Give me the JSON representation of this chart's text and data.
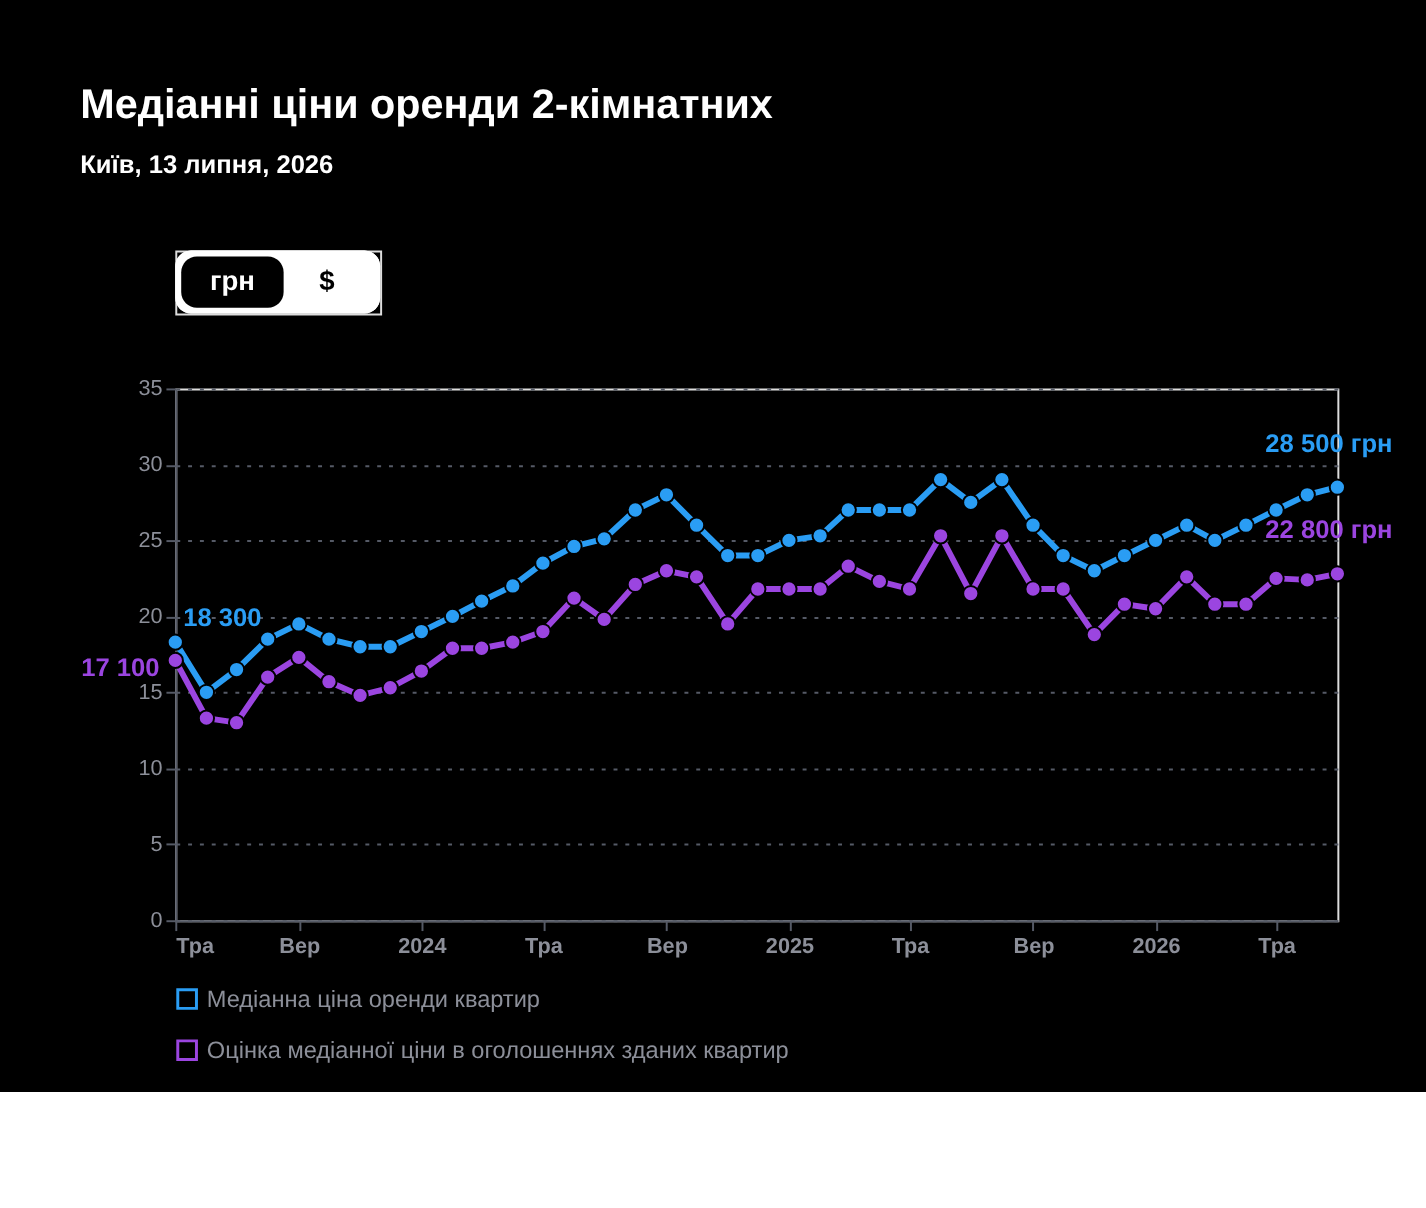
{
  "chart_data": {
    "type": "line",
    "title": "Медіанні ціни оренди 2-кімнатних",
    "subtitle": "Київ, 13 липня, 2026",
    "annotations": [
      "грн",
      "$",
      {
        "text": "18 300",
        "x": "2023-05",
        "y": 18.3
      },
      {
        "text": "17 100",
        "x": "2023-05",
        "y": 17.1
      },
      {
        "text": "28 500 грн",
        "x": "2026-07",
        "y": 28.5
      },
      {
        "text": "22 800 грн",
        "x": "2026-07",
        "y": 22.8
      }
    ],
    "x": [
      "2023-05",
      "2023-06",
      "2023-07",
      "2023-08",
      "2023-09",
      "2023-10",
      "2023-11",
      "2023-12",
      "2024-01",
      "2024-02",
      "2024-03",
      "2024-04",
      "2024-05",
      "2024-06",
      "2024-07",
      "2024-08",
      "2024-09",
      "2024-10",
      "2024-11",
      "2024-12",
      "2025-01",
      "2025-02",
      "2025-03",
      "2025-04",
      "2025-05",
      "2025-06",
      "2025-07",
      "2025-08",
      "2025-09",
      "2025-10",
      "2025-11",
      "2025-12",
      "2026-01",
      "2026-02",
      "2026-03",
      "2026-04",
      "2026-05",
      "2026-06",
      "2026-07"
    ],
    "series": [
      {
        "name": "Медіанна ціна оренди квартир",
        "color": "#2a9df4",
        "values": [
          18.3,
          15.0,
          16.5,
          18.5,
          19.5,
          18.5,
          18.0,
          18.0,
          19.0,
          20.0,
          21.0,
          22.0,
          23.5,
          24.6,
          25.1,
          27.0,
          28.0,
          26.0,
          24.0,
          24.0,
          25.0,
          25.3,
          27.0,
          27.0,
          27.0,
          29.0,
          27.5,
          29.0,
          26.0,
          24.0,
          23.0,
          24.0,
          25.0,
          26.0,
          25.0,
          26.0,
          27.0,
          28.0,
          28.5
        ]
      },
      {
        "name": "Оцінка медіанної ціни в оголошеннях зданих квартир",
        "color": "#9b45e0",
        "values": [
          17.1,
          13.3,
          13.0,
          16.0,
          17.3,
          15.7,
          14.8,
          15.3,
          16.4,
          17.9,
          17.9,
          18.3,
          19.0,
          21.2,
          19.8,
          22.1,
          23.0,
          22.6,
          19.5,
          21.8,
          21.8,
          21.8,
          23.3,
          22.3,
          21.8,
          25.3,
          21.5,
          25.3,
          21.8,
          21.8,
          18.8,
          20.8,
          20.5,
          22.6,
          20.8,
          20.8,
          22.5,
          22.4,
          22.8
        ]
      }
    ],
    "xlim": [
      "2023-05",
      "2026-07"
    ],
    "xticks": [
      {
        "value": "2023-05",
        "label": "Тра"
      },
      {
        "value": "2023-09",
        "label": "Вер"
      },
      {
        "value": "2024-01",
        "label": "2024"
      },
      {
        "value": "2024-05",
        "label": "Тра"
      },
      {
        "value": "2024-09",
        "label": "Вер"
      },
      {
        "value": "2025-01",
        "label": "2025"
      },
      {
        "value": "2025-05",
        "label": "Тра"
      },
      {
        "value": "2025-09",
        "label": "Вер"
      },
      {
        "value": "2026-01",
        "label": "2026"
      },
      {
        "value": "2026-05",
        "label": "Тра"
      }
    ],
    "ylim": [
      0,
      35
    ],
    "yticks": [
      0,
      5,
      10,
      15,
      20,
      25,
      30,
      35
    ],
    "grid": "y",
    "legend": "bottom",
    "marker": "circle",
    "line_style": "solid"
  }
}
